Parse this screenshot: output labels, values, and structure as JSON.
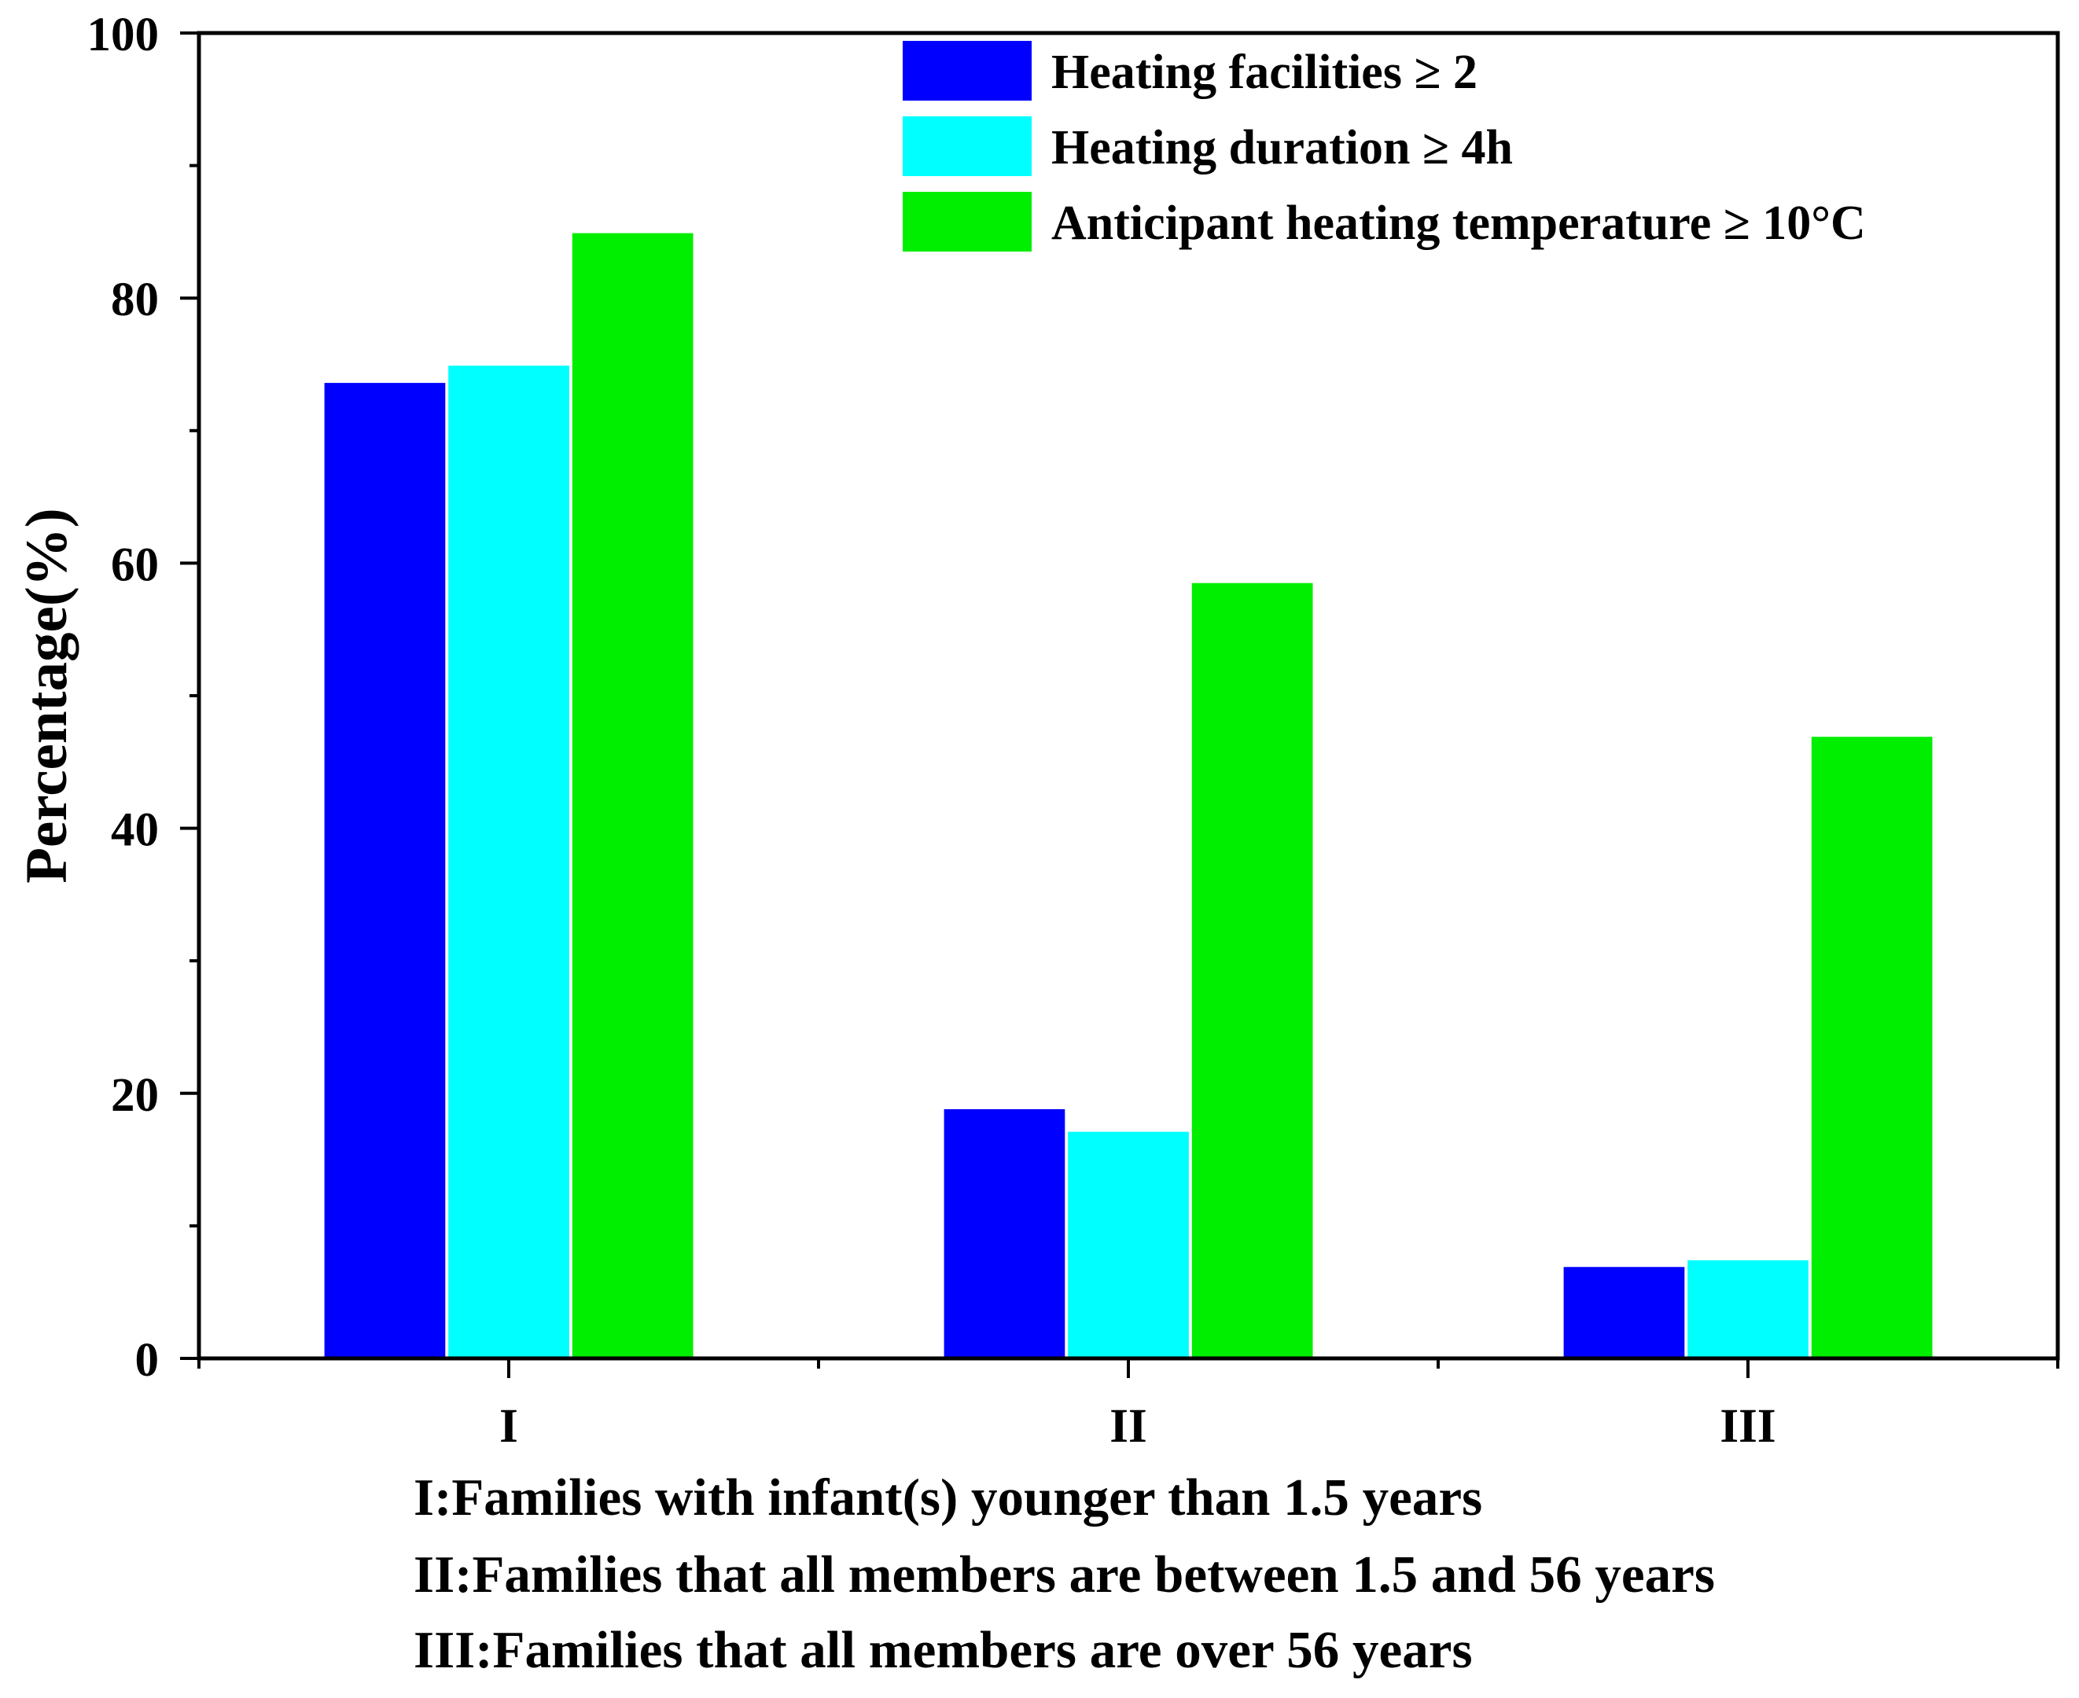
{
  "chart_data": {
    "type": "bar",
    "categories": [
      "I",
      "II",
      "III"
    ],
    "series": [
      {
        "name": "Heating facilities ≥ 2",
        "color": "#0000FF",
        "values": [
          73.6,
          18.8,
          6.9
        ]
      },
      {
        "name": "Heating duration ≥ 4h",
        "color": "#00FFFF",
        "values": [
          74.9,
          17.1,
          7.4
        ]
      },
      {
        "name": "Anticipant heating temperature ≥ 10°C",
        "color": "#00EE00",
        "values": [
          84.9,
          58.5,
          46.9
        ]
      }
    ],
    "ylabel": "Percentage(%)",
    "ylim": [
      0,
      100
    ],
    "yticks": [
      0,
      20,
      40,
      60,
      80,
      100
    ],
    "legend_position": "top-right",
    "category_notes": [
      "I:Families with infant(s) younger than 1.5 years",
      "II:Families that all members are between 1.5 and 56 years",
      "III:Families that all members are over 56 years"
    ]
  }
}
